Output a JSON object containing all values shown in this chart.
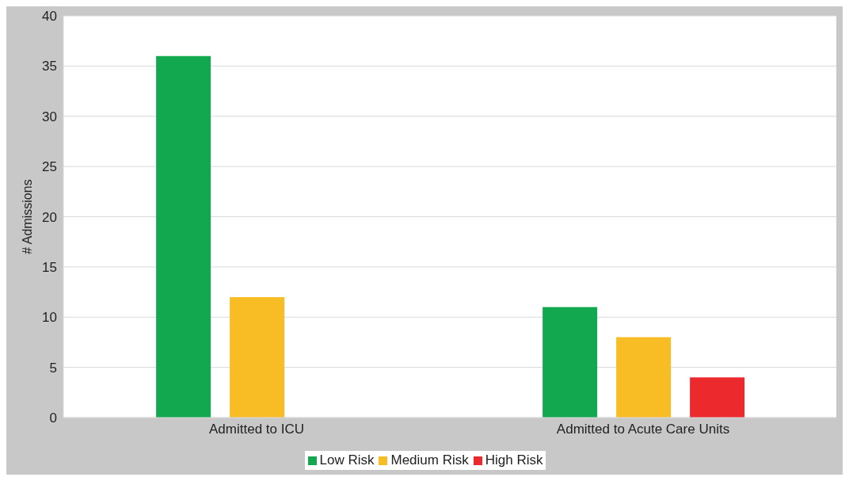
{
  "chart_data": {
    "type": "bar",
    "ylabel": "# Admissions",
    "categories": [
      "Admitted to ICU",
      "Admitted to Acute Care Units"
    ],
    "series": [
      {
        "name": "Low Risk",
        "color": "#12a84f",
        "values": [
          36,
          11
        ]
      },
      {
        "name": "Medium Risk",
        "color": "#f8bc24",
        "values": [
          12,
          8
        ]
      },
      {
        "name": "High Risk",
        "color": "#ec2a2e",
        "values": [
          0,
          4
        ]
      }
    ],
    "ylim": [
      0,
      40
    ],
    "yticks": [
      0,
      5,
      10,
      15,
      20,
      25,
      30,
      35,
      40
    ],
    "grid": "y",
    "legend": "bottom"
  }
}
